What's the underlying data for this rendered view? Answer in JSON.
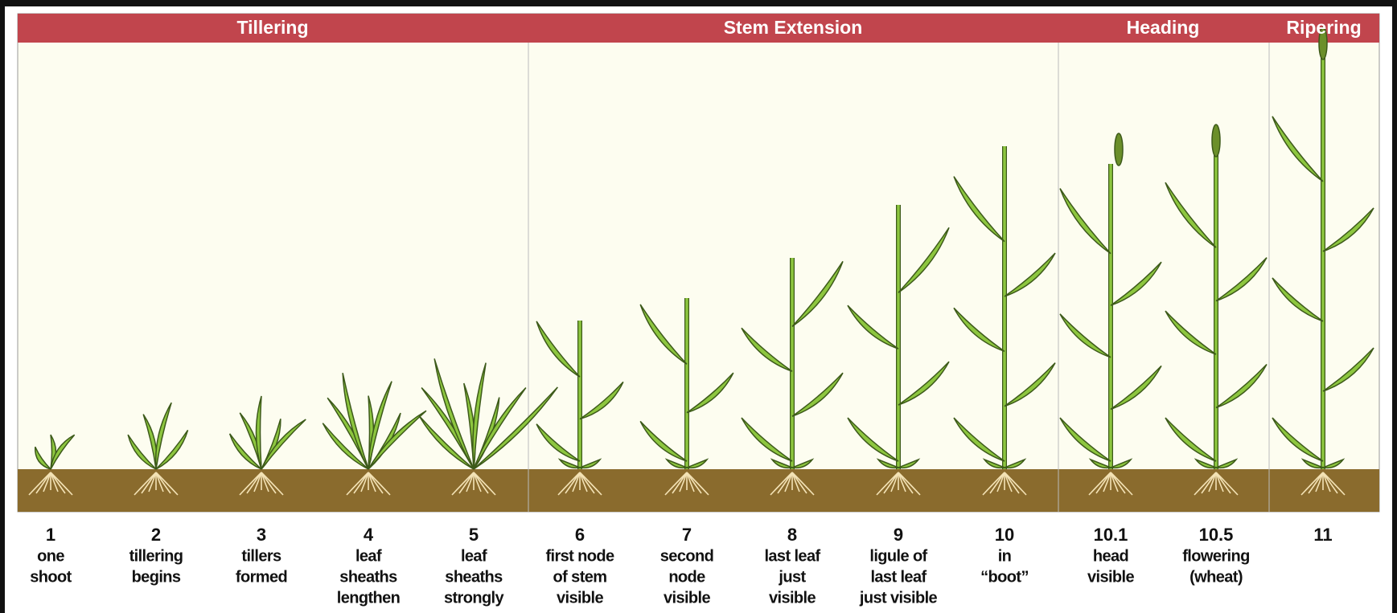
{
  "sections": [
    {
      "title": "Tillering"
    },
    {
      "title": "Stem Extension"
    },
    {
      "title": "Heading"
    },
    {
      "title": "Ripering"
    }
  ],
  "stages": [
    {
      "number": "1",
      "lines": [
        "one",
        "shoot"
      ]
    },
    {
      "number": "2",
      "lines": [
        "tillering",
        "begins"
      ]
    },
    {
      "number": "3",
      "lines": [
        "tillers",
        "formed"
      ]
    },
    {
      "number": "4",
      "lines": [
        "leaf",
        "sheaths",
        "lengthen"
      ]
    },
    {
      "number": "5",
      "lines": [
        "leaf",
        "sheaths",
        "strongly"
      ]
    },
    {
      "number": "6",
      "lines": [
        "first node",
        "of stem",
        "visible"
      ]
    },
    {
      "number": "7",
      "lines": [
        "second",
        "node",
        "visible"
      ]
    },
    {
      "number": "8",
      "lines": [
        "last leaf",
        "just",
        "visible"
      ]
    },
    {
      "number": "9",
      "lines": [
        "ligule of",
        "last leaf",
        "just visible"
      ]
    },
    {
      "number": "10",
      "lines": [
        "in",
        "“boot”"
      ]
    },
    {
      "number": "10.1",
      "lines": [
        "head",
        "visible"
      ]
    },
    {
      "number": "10.5",
      "lines": [
        "flowering",
        "(wheat)"
      ]
    },
    {
      "number": "11",
      "lines": []
    }
  ]
}
